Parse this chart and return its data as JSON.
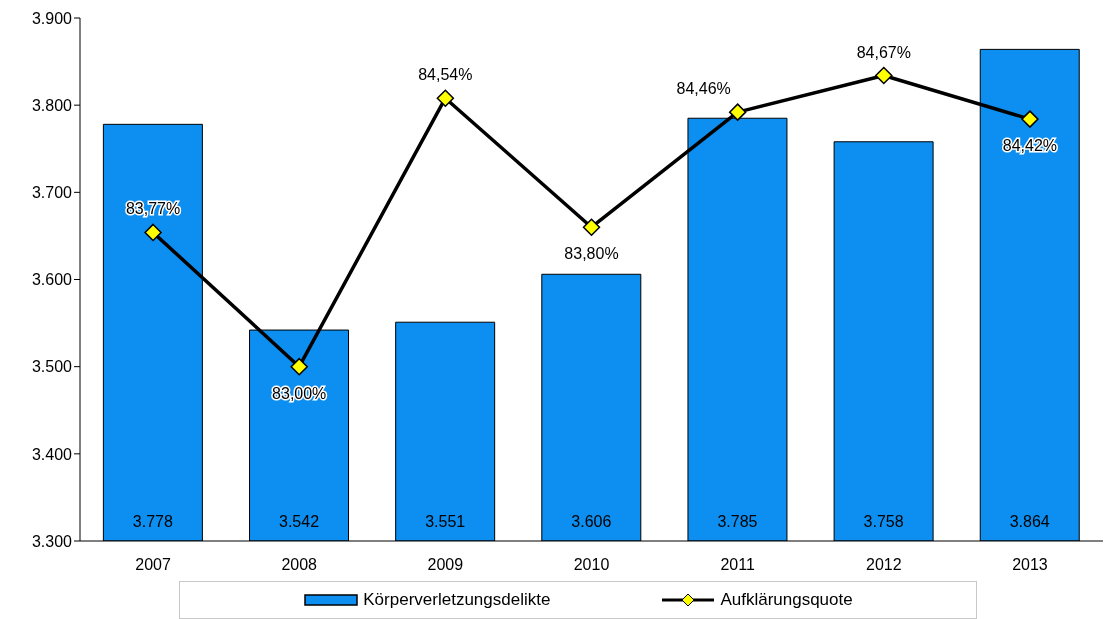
{
  "chart_data": {
    "type": "bar",
    "categories": [
      "2007",
      "2008",
      "2009",
      "2010",
      "2011",
      "2012",
      "2013"
    ],
    "series": [
      {
        "name": "Körperverletzungsdelikte",
        "color": "#0c8ff0",
        "values": [
          3778,
          3542,
          3551,
          3606,
          3785,
          3758,
          3864
        ],
        "value_labels": [
          "3.778",
          "3.542",
          "3.551",
          "3.606",
          "3.785",
          "3.758",
          "3.864"
        ]
      },
      {
        "name": "Aufklärungsquote",
        "type": "line",
        "axis": "y2",
        "color": "#000000",
        "values": [
          83.77,
          83.0,
          84.54,
          83.8,
          84.46,
          84.67,
          84.42
        ],
        "value_labels": [
          "83,77%",
          "83,00%",
          "84,54%",
          "83,80%",
          "84,46%",
          "84,67%",
          "84,42%"
        ]
      }
    ],
    "ylim": [
      3300,
      3900
    ],
    "yticks": [
      {
        "value": 3300,
        "label": "3.300"
      },
      {
        "value": 3400,
        "label": "3.400"
      },
      {
        "value": 3500,
        "label": "3.500"
      },
      {
        "value": 3600,
        "label": "3.600"
      },
      {
        "value": 3700,
        "label": "3.700"
      },
      {
        "value": 3800,
        "label": "3.800"
      },
      {
        "value": 3900,
        "label": "3.900"
      }
    ],
    "y2lim": [
      82,
      85
    ],
    "grid": false,
    "legend": "bottom",
    "marker": "diamond",
    "line_style": "solid",
    "tick_labels": "y"
  }
}
